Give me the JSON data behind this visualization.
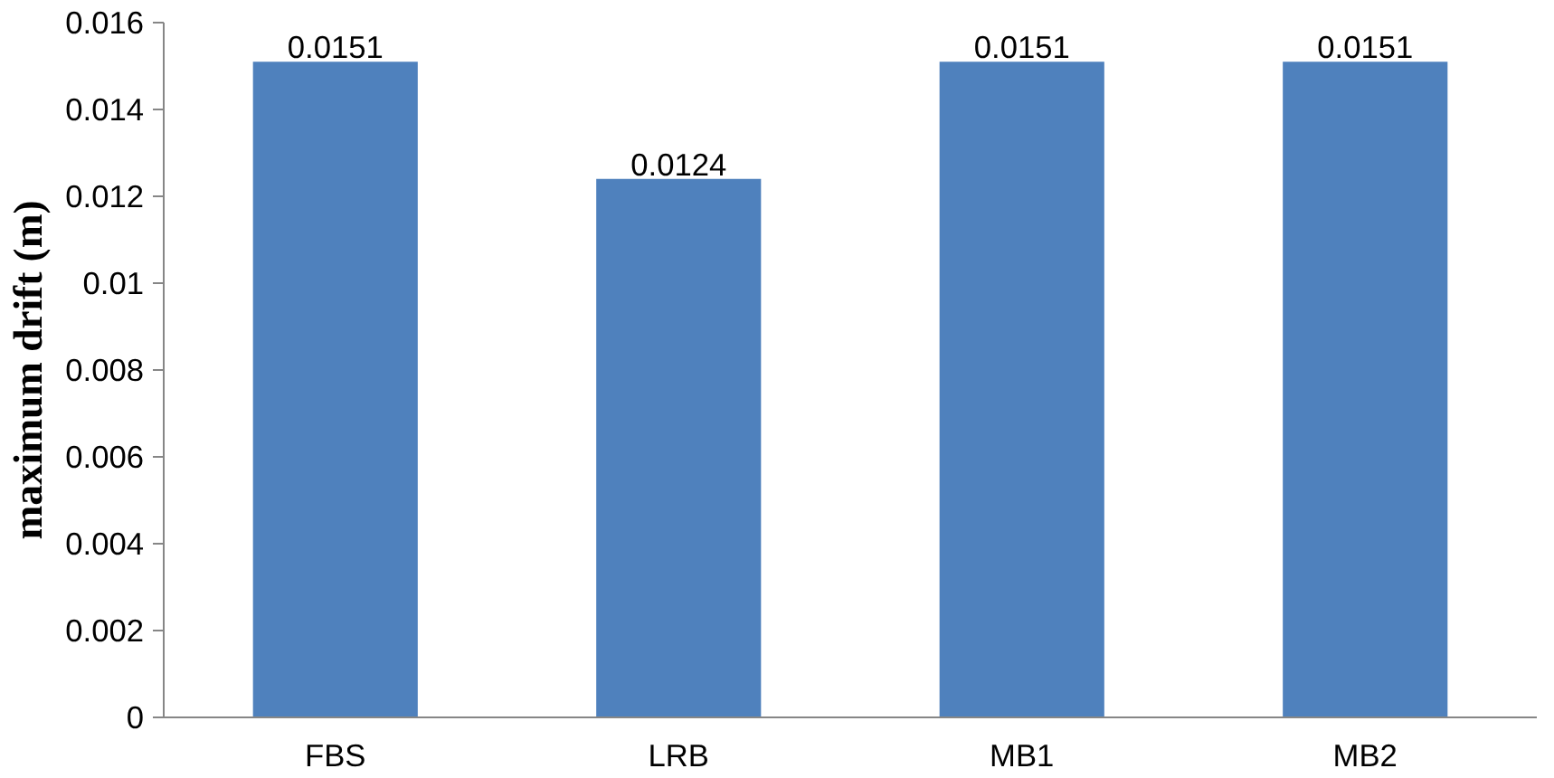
{
  "chart_data": {
    "type": "bar",
    "ylabel": "maximum drift (m)",
    "categories": [
      "FBS",
      "LRB",
      "MB1",
      "MB2"
    ],
    "values": [
      0.0151,
      0.0124,
      0.0151,
      0.0151
    ],
    "color": "#4f81bd",
    "ylim": [
      0,
      0.016
    ],
    "yticks": [
      0,
      0.002,
      0.004,
      0.006,
      0.008,
      0.01,
      0.012,
      0.014,
      0.016
    ],
    "data_labels": true,
    "grid": false
  }
}
